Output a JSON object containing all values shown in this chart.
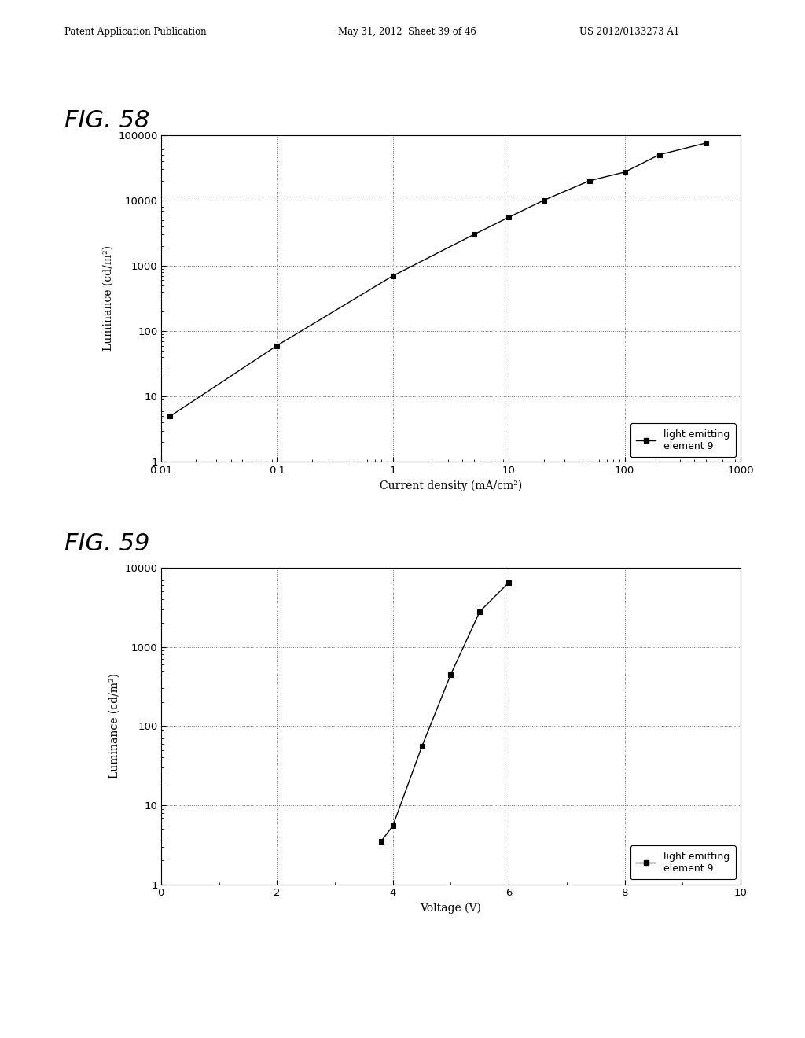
{
  "header_left": "Patent Application Publication",
  "header_mid": "May 31, 2012  Sheet 39 of 46",
  "header_right": "US 2012/0133273 A1",
  "fig58_title": "FIG. 58",
  "fig59_title": "FIG. 59",
  "fig58_xlabel": "Current density (mA/cm²)",
  "fig58_ylabel": "Luminance (cd/m²)",
  "fig59_xlabel": "Voltage (V)",
  "fig59_ylabel": "Luminance (cd/m²)",
  "fig58_legend": "light emitting\nelement 9",
  "fig59_legend": "light emitting\nelement 9",
  "fig58_x": [
    0.012,
    0.1,
    1.0,
    5.0,
    10.0,
    20.0,
    50.0,
    100.0,
    200.0,
    500.0
  ],
  "fig58_y": [
    5.0,
    60.0,
    700.0,
    3000.0,
    5500.0,
    10000.0,
    20000.0,
    27000.0,
    50000.0,
    75000.0
  ],
  "fig59_x": [
    3.8,
    4.0,
    4.5,
    5.0,
    5.5,
    6.0
  ],
  "fig59_y": [
    3.5,
    5.5,
    55.0,
    450.0,
    2800.0,
    6500.0
  ],
  "line_color": "#000000",
  "marker_style": "s",
  "marker_size": 5,
  "marker_color": "#000000",
  "bg_color": "#ffffff",
  "grid_color": "#666666",
  "fig58_xlim": [
    0.01,
    1000
  ],
  "fig58_ylim": [
    1,
    100000
  ],
  "fig59_xlim": [
    0,
    10
  ],
  "fig59_ylim": [
    1,
    10000
  ]
}
